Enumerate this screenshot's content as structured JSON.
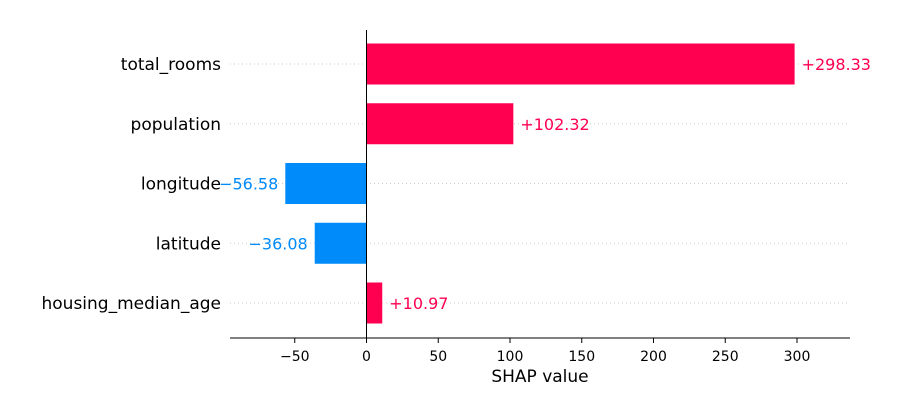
{
  "chart_data": {
    "type": "bar",
    "orientation": "horizontal",
    "categories": [
      "total_rooms",
      "population",
      "longitude",
      "latitude",
      "housing_median_age"
    ],
    "values": [
      298.33,
      102.32,
      -56.58,
      -36.08,
      10.97
    ],
    "value_labels": [
      "+298.33",
      "+102.32",
      "−56.58",
      "−36.08",
      "+10.97"
    ],
    "xlabel": "SHAP value",
    "xlim": [
      -94,
      337
    ],
    "xticks": [
      -50,
      0,
      50,
      100,
      150,
      200,
      250,
      300
    ],
    "xtick_labels": [
      "−50",
      "0",
      "50",
      "100",
      "150",
      "200",
      "250",
      "300"
    ],
    "colors": {
      "positive": "#ff0051",
      "negative": "#008bfb"
    },
    "grid": "horizontal dotted guides per feature"
  }
}
